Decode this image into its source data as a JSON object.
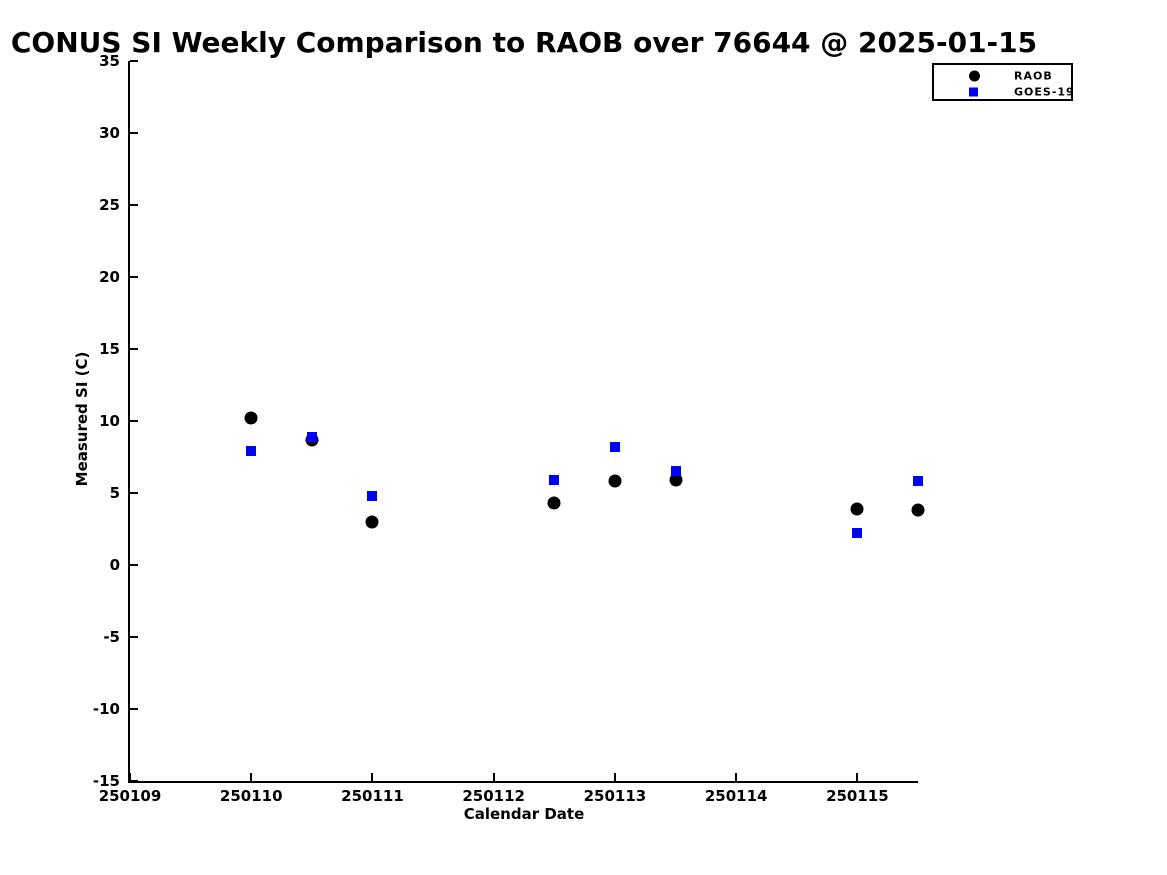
{
  "figure": {
    "background": "#ffffff",
    "axis_color": "#000000"
  },
  "chart_data": {
    "type": "scatter",
    "title": "CONUS SI Weekly Comparison to RAOB over 76644 @ 2025-01-15",
    "xlabel": "Calendar Date",
    "ylabel": "Measured SI (C)",
    "xlim": [
      250109,
      250115.5
    ],
    "ylim": [
      -15,
      35
    ],
    "x_ticks": [
      250109,
      250110,
      250111,
      250112,
      250113,
      250114,
      250115
    ],
    "y_ticks": [
      35,
      30,
      25,
      20,
      15,
      10,
      5,
      0,
      -5,
      -10,
      -15
    ],
    "grid": false,
    "legend_position": "top-right-outside",
    "series": [
      {
        "name": "RAOB",
        "marker": "circle",
        "color": "#000000",
        "points": [
          [
            250110.0,
            10.2
          ],
          [
            250110.5,
            8.7
          ],
          [
            250111.0,
            3.0
          ],
          [
            250112.5,
            4.3
          ],
          [
            250113.0,
            5.8
          ],
          [
            250113.5,
            5.9
          ],
          [
            250115.0,
            3.9
          ],
          [
            250115.5,
            3.8
          ]
        ]
      },
      {
        "name": "GOES-19",
        "marker": "square",
        "color": "#0000ff",
        "points": [
          [
            250110.0,
            7.9
          ],
          [
            250110.5,
            8.9
          ],
          [
            250111.0,
            4.8
          ],
          [
            250112.5,
            5.9
          ],
          [
            250113.0,
            8.2
          ],
          [
            250113.5,
            6.5
          ],
          [
            250115.0,
            2.2
          ],
          [
            250115.5,
            5.8
          ]
        ]
      }
    ]
  }
}
